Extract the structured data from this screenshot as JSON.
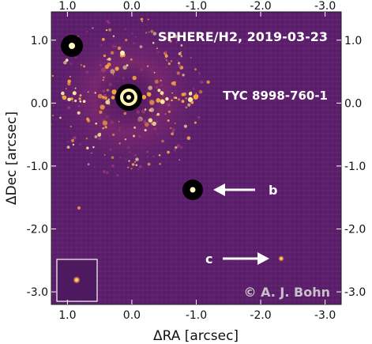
{
  "header": {
    "title": "SPHERE/H2, 2019-03-23",
    "target": "TYC 8998-760-1"
  },
  "labels": {
    "b": "b",
    "c": "c",
    "credit": "© A. J. Bohn"
  },
  "axes": {
    "x": {
      "title": "ΔRA [arcsec]",
      "ticks": [
        {
          "value": 1.0,
          "label": "1.0"
        },
        {
          "value": 0.0,
          "label": "0.0"
        },
        {
          "value": -1.0,
          "label": "-1.0"
        },
        {
          "value": -2.0,
          "label": "-2.0"
        },
        {
          "value": -3.0,
          "label": "-3.0"
        }
      ],
      "range": [
        1.25,
        -3.25
      ]
    },
    "y": {
      "title": "ΔDec [arcsec]",
      "ticks": [
        {
          "value": 1.0,
          "label": "1.0"
        },
        {
          "value": 0.0,
          "label": "0.0"
        },
        {
          "value": -1.0,
          "label": "-1.0"
        },
        {
          "value": -2.0,
          "label": "-2.0"
        },
        {
          "value": -3.0,
          "label": "-3.0"
        }
      ],
      "range": [
        -3.2,
        1.45
      ]
    }
  },
  "colors": {
    "background": "#5c1f6b",
    "speckle_bright": "#f7e79a",
    "speckle_mid": "#f6a13f",
    "annotation": "#ffffff"
  }
}
